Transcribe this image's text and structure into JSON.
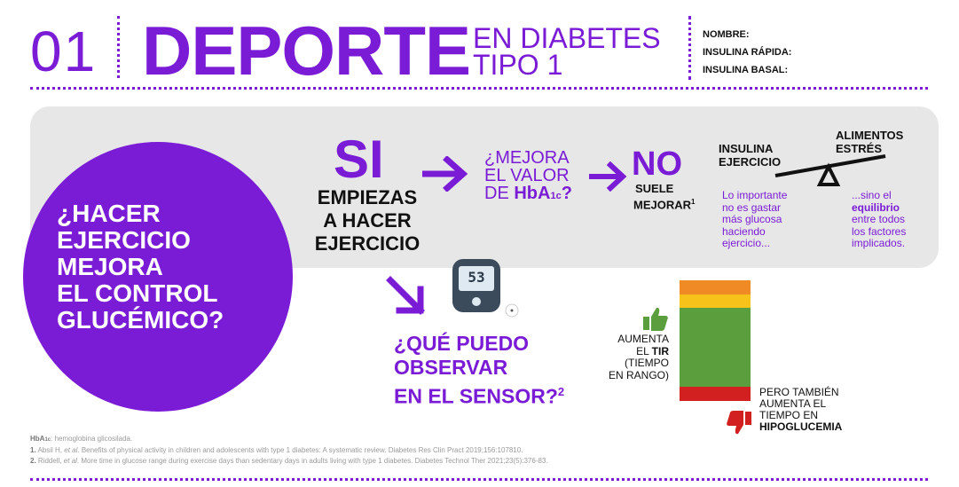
{
  "header": {
    "number": "01",
    "title": "DEPORTE",
    "subtitle_line1": "EN DIABETES",
    "subtitle_line2": "TIPO 1",
    "fields": [
      "NOMBRE:",
      "INSULINA RÁPIDA:",
      "INSULINA BASAL:"
    ]
  },
  "question": [
    "¿HACER",
    "EJERCICIO",
    "MEJORA",
    "EL CONTROL",
    "GLUCÉMICO?"
  ],
  "si": "SI",
  "empiezas": [
    "EMPIEZAS",
    "A HACER",
    "EJERCICIO"
  ],
  "mejora": {
    "line1": "¿MEJORA",
    "line2": "EL VALOR",
    "line3_pre": "DE ",
    "hba": "HbA",
    "sub": "1c",
    "q": "?"
  },
  "no": "NO",
  "suele": {
    "line1": "SUELE",
    "line2": "MEJORAR",
    "sup": "1"
  },
  "seesaw": {
    "left": [
      "INSULINA",
      "EJERCICIO"
    ],
    "right": [
      "ALIMENTOS",
      "ESTRÉS"
    ]
  },
  "lo_importante": [
    "Lo importante",
    "no es gastar",
    "más glucosa",
    "haciendo",
    "ejercicio..."
  ],
  "sino": {
    "line1": "...sino el",
    "bold": "equilibrio",
    "rest": [
      "entre todos",
      "los factores",
      "implicados."
    ]
  },
  "meter_value": "53",
  "sensor_question": {
    "lines": [
      "¿QUÉ PUEDO",
      "OBSERVAR",
      "EN EL SENSOR?"
    ],
    "sup": "2"
  },
  "aumenta": {
    "lines": [
      "AUMENTA",
      "EL "
    ],
    "bold": "TIR",
    "rest": [
      "(TIEMPO",
      "EN RANGO)"
    ]
  },
  "pero": {
    "lines": [
      "PERO TAMBIÉN",
      "AUMENTA EL",
      "TIEMPO EN"
    ],
    "bold": "HIPOGLUCEMIA"
  },
  "tir_bar": {
    "segments": [
      {
        "level": "very-high",
        "color": "#f08a24",
        "fraction": 0.12
      },
      {
        "level": "high",
        "color": "#f7c31b",
        "fraction": 0.11
      },
      {
        "level": "in-range",
        "color": "#5b9e3d",
        "fraction": 0.65
      },
      {
        "level": "low",
        "color": "#d21f1f",
        "fraction": 0.12
      }
    ]
  },
  "footer": {
    "hba_label": "HbA",
    "hba_sub": "1c",
    "hba_def": ": hemoglobina glicosilada.",
    "ref1_num": "1.",
    "ref1_a": " Absil H, ",
    "ref1_etal": "et al",
    "ref1_b": ". Benefits of physical activity in children and adolescents with type 1 diabetes: A systematic review. Diabetes Res Clin Pract 2019;156:107810.",
    "ref2_num": "2.",
    "ref2_a": " Riddell, ",
    "ref2_etal": "et al",
    "ref2_b": ". More time in glucose range during exercise days than sedentary days in adults living with type 1 diabetes. Diabetes Technol Ther 2021;23(5):376-83."
  },
  "colors": {
    "accent": "#7a1bd6",
    "panel": "#e7e7e7",
    "thumb_up": "#5b9e3d",
    "thumb_down": "#d21f1f"
  }
}
